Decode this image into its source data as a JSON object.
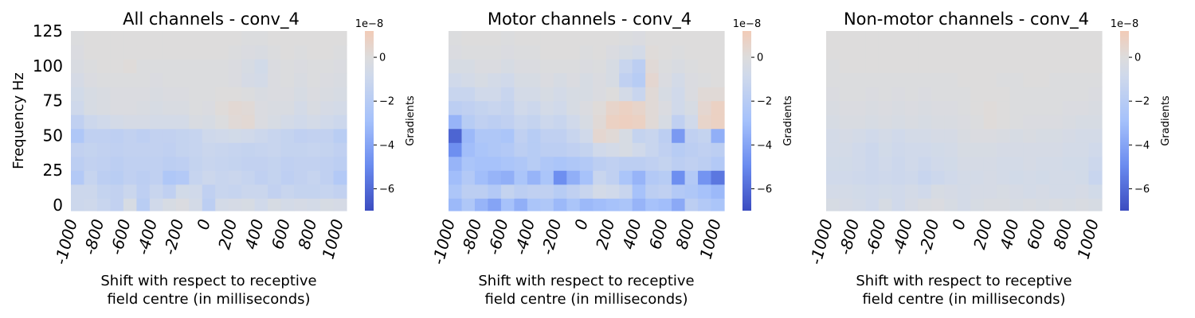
{
  "figure": {
    "ylabel": "Frequency Hz",
    "xlabel_line1": "Shift with respect to receptive",
    "xlabel_line2": "field centre (in milliseconds)"
  },
  "colorbar": {
    "label": "Gradients",
    "exponent": "1e−8",
    "range": [
      -7.0,
      1.2
    ],
    "ticks": [
      0,
      -2,
      -4,
      -6
    ],
    "tick_labels": [
      "0",
      "−2",
      "−4",
      "−6"
    ]
  },
  "chart_data": [
    {
      "type": "heatmap",
      "title": "All channels - conv_4",
      "x_ticks": [
        "-1000",
        "-800",
        "-600",
        "-400",
        "-200",
        "0",
        "200",
        "400",
        "600",
        "800",
        "1000"
      ],
      "y_ticks": [
        "0",
        "25",
        "50",
        "75",
        "100",
        "125"
      ],
      "ylim": [
        -4,
        125
      ],
      "freq_bins": [
        0,
        10,
        20,
        30,
        40,
        50,
        60,
        70,
        80,
        90,
        100,
        110,
        120
      ],
      "values": [
        [
          -1.0,
          -0.9,
          -1.2,
          -1.5,
          -0.4,
          -1.9,
          -0.8,
          -0.4,
          -0.2,
          -0.6,
          -1.8,
          -0.6,
          -0.5,
          -0.4,
          -0.8,
          -0.4,
          -0.6,
          -0.5,
          -0.6,
          -0.4,
          -0.5
        ],
        [
          -1.0,
          -1.0,
          -1.4,
          -1.5,
          -1.1,
          -1.7,
          -1.2,
          -1.6,
          -0.7,
          -0.8,
          -1.6,
          -1.2,
          -1.3,
          -1.1,
          -1.1,
          -1.5,
          -1.2,
          -1.4,
          -1.4,
          -1.3,
          -1.5
        ],
        [
          -2.2,
          -1.3,
          -1.8,
          -1.9,
          -1.6,
          -1.8,
          -1.6,
          -2.4,
          -2.2,
          -1.3,
          -1.0,
          -1.2,
          -1.1,
          -1.3,
          -1.6,
          -1.4,
          -1.7,
          -1.5,
          -1.3,
          -1.6,
          -2.2
        ],
        [
          -1.8,
          -1.5,
          -1.6,
          -1.8,
          -1.6,
          -1.6,
          -1.6,
          -1.8,
          -1.7,
          -1.4,
          -1.2,
          -1.3,
          -1.4,
          -1.5,
          -1.5,
          -1.4,
          -1.6,
          -1.5,
          -1.5,
          -1.6,
          -1.8
        ],
        [
          -1.5,
          -1.4,
          -1.5,
          -1.6,
          -1.5,
          -1.5,
          -1.5,
          -1.6,
          -1.4,
          -1.3,
          -1.1,
          -1.2,
          -1.3,
          -1.4,
          -1.3,
          -1.2,
          -1.4,
          -1.4,
          -1.3,
          -1.4,
          -1.6
        ],
        [
          -2.4,
          -1.6,
          -1.6,
          -1.7,
          -1.5,
          -1.7,
          -1.5,
          -1.5,
          -1.4,
          -1.3,
          -0.9,
          -0.8,
          -0.7,
          -0.8,
          -1.0,
          -1.2,
          -1.4,
          -1.6,
          -1.5,
          -1.5,
          -1.9
        ],
        [
          -1.6,
          -1.0,
          -0.8,
          -0.6,
          -0.5,
          -0.5,
          -0.6,
          -0.6,
          -0.6,
          -0.3,
          -0.4,
          -0.1,
          0.2,
          0.3,
          -0.2,
          -0.4,
          -0.6,
          -0.8,
          -0.6,
          -0.8,
          -1.0
        ],
        [
          -0.9,
          -0.4,
          -0.3,
          -0.2,
          -0.2,
          -0.3,
          -0.4,
          -0.3,
          -0.3,
          -0.1,
          -0.2,
          0.1,
          0.3,
          0.2,
          -0.2,
          -0.3,
          -0.3,
          -0.6,
          -0.3,
          -0.5,
          -0.6
        ],
        [
          -0.7,
          -0.4,
          -0.3,
          -0.2,
          -0.2,
          -0.2,
          -0.3,
          -0.2,
          -0.2,
          -0.1,
          -0.1,
          0.0,
          0.0,
          -0.1,
          -0.3,
          -0.2,
          -0.2,
          -0.4,
          -0.2,
          -0.3,
          -0.4
        ],
        [
          -0.5,
          -0.2,
          -0.1,
          -0.1,
          -0.1,
          -0.1,
          -0.2,
          -0.1,
          -0.1,
          -0.1,
          -0.1,
          -0.1,
          -0.2,
          -0.5,
          -0.6,
          -0.2,
          -0.1,
          -0.3,
          -0.1,
          -0.2,
          -0.3
        ],
        [
          -0.3,
          -0.1,
          0.0,
          0.0,
          0.1,
          -0.1,
          -0.1,
          -0.1,
          -0.1,
          -0.1,
          -0.1,
          -0.1,
          -0.2,
          -0.4,
          -0.7,
          -0.2,
          -0.1,
          -0.2,
          -0.1,
          -0.1,
          -0.2
        ],
        [
          -0.2,
          0.0,
          0.0,
          0.0,
          0.0,
          0.0,
          0.0,
          0.0,
          0.0,
          0.0,
          0.0,
          0.0,
          -0.1,
          -0.2,
          -0.3,
          -0.1,
          0.0,
          -0.1,
          0.0,
          0.0,
          -0.1
        ],
        [
          -0.1,
          0.0,
          0.0,
          0.0,
          0.0,
          0.0,
          0.0,
          0.0,
          0.0,
          0.0,
          0.0,
          0.0,
          0.0,
          -0.1,
          -0.1,
          0.0,
          0.0,
          0.0,
          0.0,
          0.0,
          0.0
        ]
      ]
    },
    {
      "type": "heatmap",
      "title": "Motor channels - conv_4",
      "x_ticks": [
        "-1000",
        "-800",
        "-600",
        "-400",
        "-200",
        "0",
        "200",
        "400",
        "600",
        "800",
        "1000"
      ],
      "y_ticks": [
        "0",
        "25",
        "50",
        "75",
        "100",
        "125"
      ],
      "ylim": [
        -4,
        125
      ],
      "freq_bins": [
        0,
        10,
        20,
        30,
        40,
        50,
        60,
        70,
        80,
        90,
        100,
        110,
        120
      ],
      "values": [
        [
          -3.2,
          -2.4,
          -3.4,
          -4.0,
          -2.8,
          -3.6,
          -2.6,
          -2.4,
          -3.2,
          -2.6,
          -3.2,
          -3.0,
          -2.8,
          -2.6,
          -3.4,
          -2.8,
          -3.0,
          -3.8,
          -1.8,
          -2.2,
          -2.6
        ],
        [
          -2.5,
          -1.8,
          -1.8,
          -2.2,
          -1.4,
          -1.8,
          -1.6,
          -1.6,
          -2.0,
          -1.6,
          -1.2,
          -0.6,
          -0.8,
          -1.2,
          -2.8,
          -1.8,
          -1.6,
          -2.2,
          -2.4,
          -2.8,
          -3.2
        ],
        [
          -3.0,
          -2.2,
          -3.0,
          -3.4,
          -3.6,
          -2.6,
          -3.4,
          -2.6,
          -4.8,
          -3.6,
          -2.8,
          -1.2,
          -1.6,
          -2.6,
          -3.4,
          -2.2,
          -2.0,
          -4.8,
          -2.2,
          -4.6,
          -5.6
        ],
        [
          -3.4,
          -2.6,
          -2.8,
          -2.8,
          -2.6,
          -2.4,
          -2.0,
          -2.4,
          -2.6,
          -2.4,
          -2.2,
          -1.8,
          -1.6,
          -1.8,
          -1.8,
          -1.6,
          -1.4,
          -1.8,
          -1.6,
          -1.8,
          -2.2
        ],
        [
          -4.8,
          -3.0,
          -2.6,
          -2.4,
          -2.2,
          -1.8,
          -2.0,
          -1.8,
          -1.8,
          -1.6,
          -1.4,
          -0.8,
          -0.6,
          -0.4,
          -0.8,
          -1.2,
          -1.6,
          -2.0,
          -1.8,
          -1.6,
          -1.8
        ],
        [
          -6.2,
          -3.2,
          -2.4,
          -2.4,
          -2.6,
          -1.6,
          -2.0,
          -1.6,
          -1.6,
          -1.2,
          -0.8,
          0.4,
          0.2,
          -0.4,
          -1.4,
          -1.2,
          -1.8,
          -4.4,
          -1.6,
          -1.4,
          -3.6
        ],
        [
          -3.4,
          -2.0,
          -1.6,
          -1.8,
          -1.6,
          -1.2,
          -1.4,
          -1.0,
          -1.2,
          -0.8,
          -0.4,
          0.2,
          0.8,
          0.9,
          0.8,
          0.2,
          -0.4,
          -1.6,
          -0.8,
          0.6,
          0.8
        ],
        [
          -1.8,
          -1.6,
          -1.4,
          -1.2,
          -1.4,
          -0.8,
          -1.0,
          -0.6,
          -0.8,
          -0.4,
          -0.2,
          0.1,
          0.6,
          0.8,
          0.6,
          0.2,
          -0.2,
          -0.8,
          -0.4,
          0.4,
          0.8
        ],
        [
          -1.2,
          -1.2,
          -0.8,
          -0.8,
          -1.2,
          -0.6,
          -0.6,
          -0.4,
          -0.6,
          -0.4,
          -0.4,
          -0.2,
          0.0,
          -0.6,
          -1.2,
          0.2,
          -0.4,
          -0.8,
          -0.2,
          0.2,
          0.2
        ],
        [
          -0.8,
          -0.6,
          -0.4,
          -0.6,
          -0.8,
          -0.4,
          -0.4,
          -0.2,
          -0.4,
          -0.2,
          -0.4,
          -0.2,
          -0.4,
          -1.6,
          -2.0,
          0.4,
          -0.2,
          -0.6,
          -0.2,
          -0.1,
          0.0
        ],
        [
          -0.4,
          -0.4,
          -0.2,
          -0.2,
          -0.4,
          -0.2,
          -0.2,
          -0.1,
          -0.1,
          -0.1,
          -0.2,
          -0.1,
          -0.4,
          -1.2,
          -1.8,
          0.2,
          -0.1,
          -0.3,
          -0.1,
          0.0,
          0.0
        ],
        [
          -0.2,
          -0.1,
          -0.1,
          -0.1,
          -0.2,
          -0.1,
          -0.1,
          0.0,
          0.0,
          0.0,
          -0.1,
          0.0,
          -0.2,
          -0.4,
          -0.6,
          0.1,
          0.0,
          -0.1,
          0.0,
          0.0,
          0.0
        ],
        [
          -0.1,
          0.0,
          0.0,
          0.0,
          -0.1,
          0.0,
          0.0,
          0.0,
          0.0,
          0.0,
          0.0,
          0.0,
          0.0,
          -0.1,
          -0.2,
          0.0,
          0.0,
          0.0,
          0.0,
          0.0,
          0.0
        ]
      ]
    },
    {
      "type": "heatmap",
      "title": "Non-motor channels - conv_4",
      "x_ticks": [
        "-1000",
        "-800",
        "-600",
        "-400",
        "-200",
        "0",
        "200",
        "400",
        "600",
        "800",
        "1000"
      ],
      "y_ticks": [
        "0",
        "25",
        "50",
        "75",
        "100",
        "125"
      ],
      "ylim": [
        -4,
        125
      ],
      "freq_bins": [
        0,
        10,
        20,
        30,
        40,
        50,
        60,
        70,
        80,
        90,
        100,
        110,
        120
      ],
      "values": [
        [
          -0.4,
          -0.5,
          -0.6,
          -0.8,
          -0.4,
          -0.8,
          -0.5,
          -0.3,
          -0.2,
          -0.4,
          -0.6,
          -0.4,
          -0.3,
          -0.3,
          -0.4,
          -0.3,
          -0.4,
          -0.3,
          -0.4,
          -0.3,
          -0.4
        ],
        [
          -0.6,
          -0.6,
          -0.7,
          -0.8,
          -0.7,
          -0.8,
          -0.6,
          -0.8,
          -0.4,
          -0.5,
          -0.6,
          -0.5,
          -0.5,
          -0.4,
          -0.5,
          -0.6,
          -0.5,
          -0.6,
          -0.6,
          -0.5,
          -0.7
        ],
        [
          -0.8,
          -0.8,
          -0.9,
          -1.0,
          -0.9,
          -1.0,
          -0.9,
          -1.2,
          -1.0,
          -0.8,
          -0.6,
          -0.6,
          -0.5,
          -0.6,
          -0.7,
          -0.6,
          -0.7,
          -0.6,
          -0.6,
          -0.7,
          -1.2
        ],
        [
          -0.7,
          -0.7,
          -0.8,
          -1.0,
          -0.8,
          -1.0,
          -0.8,
          -1.0,
          -0.8,
          -0.7,
          -0.5,
          -0.5,
          -0.5,
          -0.6,
          -0.6,
          -0.5,
          -0.6,
          -0.6,
          -0.7,
          -0.7,
          -1.0
        ],
        [
          -0.6,
          -0.6,
          -0.8,
          -1.0,
          -0.7,
          -0.9,
          -0.8,
          -0.8,
          -0.7,
          -0.6,
          -0.4,
          -0.4,
          -0.4,
          -0.5,
          -0.5,
          -0.5,
          -0.5,
          -0.5,
          -0.6,
          -0.6,
          -0.8
        ],
        [
          -0.6,
          -0.5,
          -0.6,
          -0.8,
          -0.6,
          -0.8,
          -0.6,
          -0.6,
          -0.5,
          -0.5,
          -0.3,
          -0.2,
          -0.2,
          -0.3,
          -0.4,
          -0.3,
          -0.4,
          -0.4,
          -0.5,
          -0.6,
          -0.6
        ],
        [
          -0.4,
          -0.3,
          -0.3,
          -0.4,
          -0.3,
          -0.4,
          -0.3,
          -0.4,
          -0.3,
          -0.3,
          -0.2,
          -0.1,
          0.1,
          0.0,
          -0.1,
          -0.2,
          -0.2,
          -0.2,
          -0.3,
          -0.4,
          -0.4
        ],
        [
          -0.3,
          -0.2,
          -0.2,
          -0.3,
          -0.2,
          -0.3,
          -0.2,
          -0.3,
          -0.2,
          -0.2,
          -0.1,
          0.0,
          0.1,
          0.0,
          -0.1,
          -0.1,
          -0.1,
          -0.1,
          -0.2,
          -0.2,
          -0.3
        ],
        [
          -0.2,
          -0.1,
          -0.1,
          -0.2,
          -0.1,
          -0.2,
          -0.1,
          -0.2,
          -0.1,
          -0.1,
          -0.1,
          0.0,
          0.0,
          0.0,
          -0.1,
          -0.1,
          -0.1,
          -0.1,
          -0.1,
          -0.1,
          -0.2
        ],
        [
          -0.1,
          -0.1,
          -0.1,
          -0.1,
          -0.1,
          -0.1,
          -0.1,
          -0.1,
          -0.1,
          -0.1,
          0.0,
          0.0,
          0.0,
          -0.1,
          -0.1,
          0.0,
          0.0,
          -0.1,
          -0.1,
          -0.1,
          -0.1
        ],
        [
          -0.1,
          0.0,
          0.0,
          0.0,
          0.0,
          0.0,
          0.0,
          0.0,
          0.0,
          0.0,
          0.0,
          0.0,
          0.0,
          0.0,
          0.0,
          0.0,
          0.0,
          0.0,
          0.0,
          0.0,
          0.0
        ],
        [
          0.0,
          0.0,
          0.0,
          0.0,
          0.0,
          0.0,
          0.0,
          0.0,
          0.0,
          0.0,
          0.0,
          0.0,
          0.0,
          0.0,
          0.0,
          0.0,
          0.0,
          0.0,
          0.0,
          0.0,
          0.0
        ],
        [
          0.0,
          0.0,
          0.0,
          0.0,
          0.0,
          0.0,
          0.0,
          0.0,
          0.0,
          0.0,
          0.0,
          0.0,
          0.0,
          0.0,
          0.0,
          0.0,
          0.0,
          0.0,
          0.0,
          0.0,
          0.0
        ]
      ]
    }
  ]
}
